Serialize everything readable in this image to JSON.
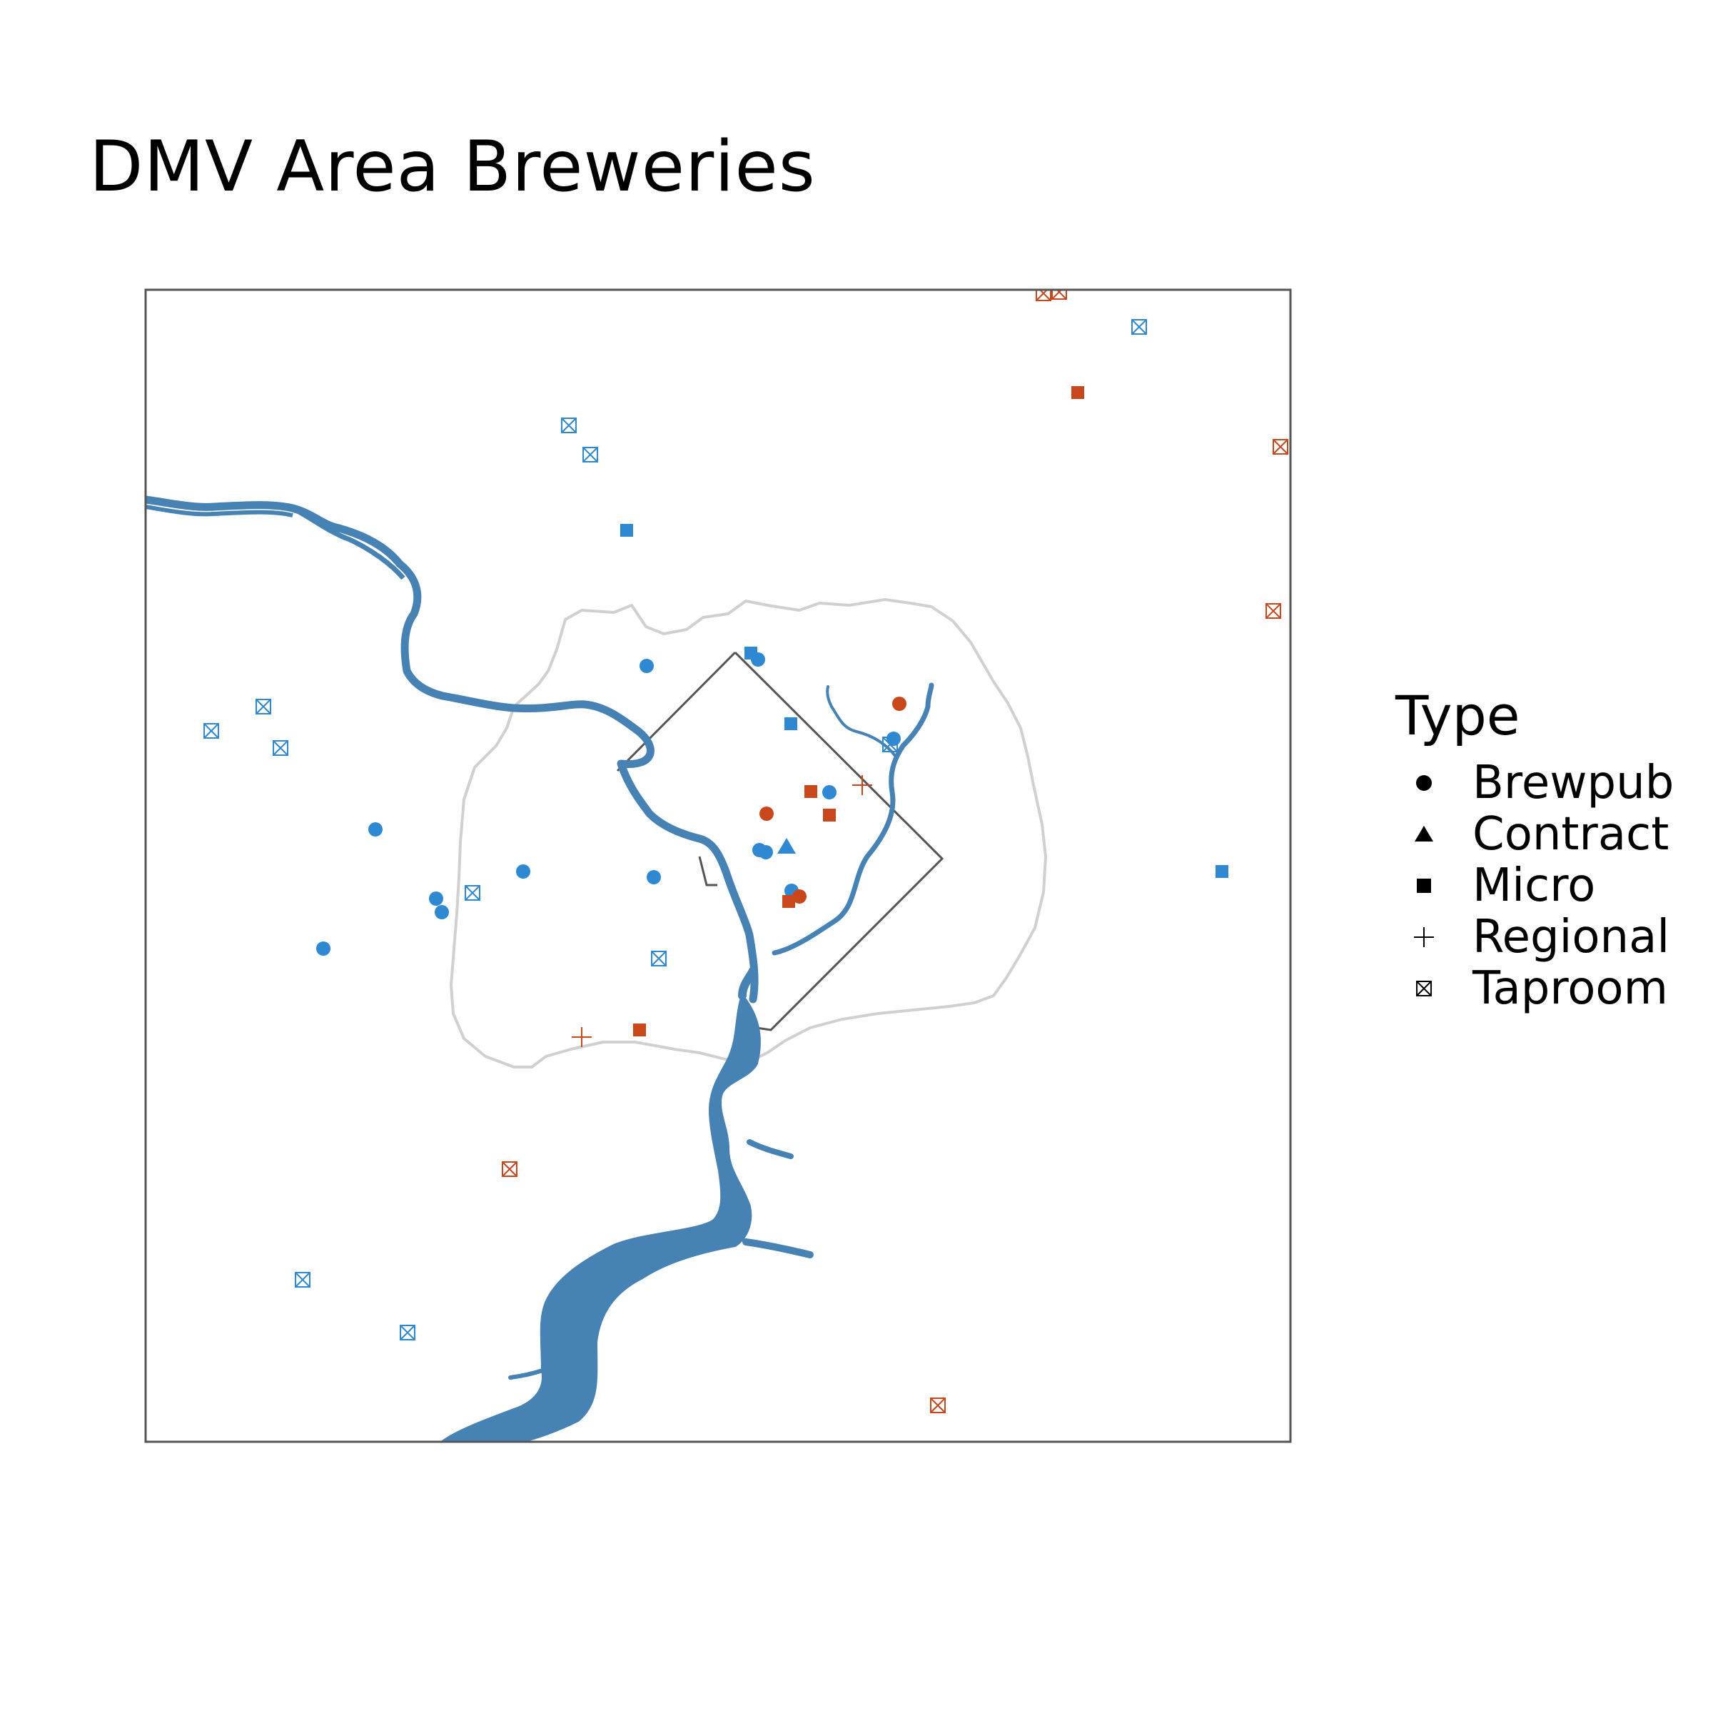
{
  "title": "DMV Area Breweries",
  "legend": {
    "title": "Type",
    "items": [
      {
        "label": "Brewpub",
        "shape": "circle"
      },
      {
        "label": "Contract",
        "shape": "triangle"
      },
      {
        "label": "Micro",
        "shape": "square"
      },
      {
        "label": "Regional",
        "shape": "plus"
      },
      {
        "label": "Taproom",
        "shape": "boxed-x"
      }
    ]
  },
  "colors": {
    "blue": "#2F89D2",
    "orange": "#C9471A",
    "river": "#4682B4",
    "boundary": "#D0D0D0",
    "dc_outline": "#555555",
    "frame": "#555555"
  }
}
